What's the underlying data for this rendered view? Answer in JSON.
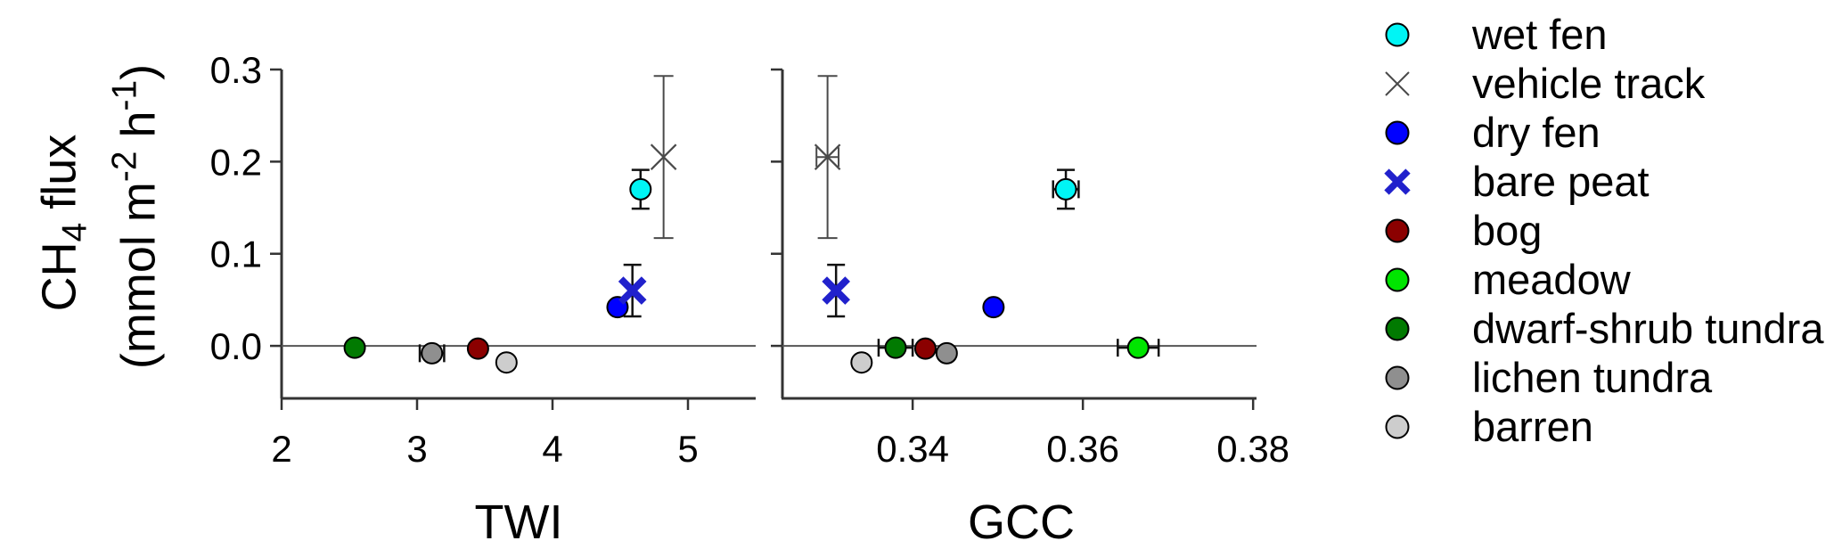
{
  "figure": {
    "background": "#ffffff",
    "axis_color": "#333333",
    "zero_line_color": "#555555",
    "error_bar_color": "#111111"
  },
  "ylabel": {
    "l1a": "CH",
    "l1sub": "4",
    "l1b": " flux",
    "l2a": "(mmol m",
    "l2sup1": "-2",
    "l2b": " h",
    "l2sup2": "-1",
    "l2c": ")"
  },
  "legend": {
    "items": [
      {
        "label": "wet fen",
        "marker": "circle",
        "color": "#00F5F5"
      },
      {
        "label": "vehicle track",
        "marker": "x-thin",
        "color": "#4A4A4A"
      },
      {
        "label": "dry fen",
        "marker": "circle",
        "color": "#0000FF"
      },
      {
        "label": "bare peat",
        "marker": "x-bold",
        "color": "#2121CC"
      },
      {
        "label": "bog",
        "marker": "circle",
        "color": "#8B0000"
      },
      {
        "label": "meadow",
        "marker": "circle",
        "color": "#00E500"
      },
      {
        "label": "dwarf-shrub tundra",
        "marker": "circle",
        "color": "#017A01"
      },
      {
        "label": "lichen tundra",
        "marker": "circle",
        "color": "#8F8F8F"
      },
      {
        "label": "barren",
        "marker": "circle",
        "color": "#CDCDCD"
      }
    ]
  },
  "chart_data": [
    {
      "type": "scatter",
      "title": "",
      "xlabel": "TWI",
      "ylabel": "CH4 flux (mmol m-2 h-1)",
      "xlim": [
        2,
        5.5
      ],
      "ylim": [
        -0.057,
        0.3
      ],
      "grid": false,
      "xticks": [
        {
          "value": 2,
          "label": "2"
        },
        {
          "value": 3,
          "label": "3"
        },
        {
          "value": 4,
          "label": "4"
        },
        {
          "value": 5,
          "label": "5"
        }
      ],
      "yticks": [
        {
          "value": 0.0,
          "label": "0.0"
        },
        {
          "value": 0.1,
          "label": "0.1"
        },
        {
          "value": 0.2,
          "label": "0.2"
        },
        {
          "value": 0.3,
          "label": "0.3"
        }
      ],
      "zero_line": true,
      "points": [
        {
          "name": "dwarf-shrub tundra",
          "marker": "circle",
          "color": "#017A01",
          "x": 2.54,
          "y": -0.002
        },
        {
          "name": "lichen tundra",
          "marker": "circle",
          "color": "#8F8F8F",
          "x": 3.11,
          "y": -0.008,
          "xerr": 0.09
        },
        {
          "name": "bog",
          "marker": "circle",
          "color": "#8B0000",
          "x": 3.45,
          "y": -0.003
        },
        {
          "name": "barren",
          "marker": "circle",
          "color": "#CDCDCD",
          "x": 3.66,
          "y": -0.018
        },
        {
          "name": "dry fen",
          "marker": "circle",
          "color": "#0000FF",
          "x": 4.48,
          "y": 0.042
        },
        {
          "name": "bare peat",
          "marker": "x-bold",
          "color": "#2121CC",
          "x": 4.59,
          "y": 0.06,
          "yerr": 0.028
        },
        {
          "name": "wet fen",
          "marker": "circle",
          "color": "#00F5F5",
          "x": 4.65,
          "y": 0.17,
          "yerr": 0.021
        },
        {
          "name": "vehicle track",
          "marker": "x-thin",
          "color": "#4A4A4A",
          "x": 4.82,
          "y": 0.205,
          "yerr": 0.088
        }
      ]
    },
    {
      "type": "scatter",
      "title": "",
      "xlabel": "GCC",
      "ylabel": "CH4 flux (mmol m-2 h-1)",
      "xlim": [
        0.3247,
        0.3804
      ],
      "ylim": [
        -0.057,
        0.3
      ],
      "grid": false,
      "xticks": [
        {
          "value": 0.34,
          "label": "0.34"
        },
        {
          "value": 0.36,
          "label": "0.36"
        },
        {
          "value": 0.38,
          "label": "0.38"
        }
      ],
      "yticks": [
        {
          "value": 0.0,
          "label": ""
        },
        {
          "value": 0.1,
          "label": ""
        },
        {
          "value": 0.2,
          "label": ""
        },
        {
          "value": 0.3,
          "label": ""
        }
      ],
      "zero_line": true,
      "points": [
        {
          "name": "barren",
          "marker": "circle",
          "color": "#CDCDCD",
          "x": 0.334,
          "y": -0.018
        },
        {
          "name": "lichen tundra",
          "marker": "circle",
          "color": "#8F8F8F",
          "x": 0.344,
          "y": -0.008
        },
        {
          "name": "bog",
          "marker": "circle",
          "color": "#8B0000",
          "x": 0.3415,
          "y": -0.003
        },
        {
          "name": "dwarf-shrub tundra",
          "marker": "circle",
          "color": "#017A01",
          "x": 0.338,
          "y": -0.002,
          "xerr": 0.002
        },
        {
          "name": "dry fen",
          "marker": "circle",
          "color": "#0000FF",
          "x": 0.3495,
          "y": 0.042
        },
        {
          "name": "bare peat",
          "marker": "x-bold",
          "color": "#2121CC",
          "x": 0.331,
          "y": 0.06,
          "yerr": 0.028
        },
        {
          "name": "vehicle track",
          "marker": "x-thin",
          "color": "#4A4A4A",
          "x": 0.33,
          "y": 0.205,
          "yerr": 0.088,
          "xerr": 0.0013
        },
        {
          "name": "wet fen",
          "marker": "circle",
          "color": "#00F5F5",
          "x": 0.358,
          "y": 0.17,
          "yerr": 0.021,
          "xerr": 0.0015
        },
        {
          "name": "meadow",
          "marker": "circle",
          "color": "#00E500",
          "x": 0.3665,
          "y": -0.002,
          "xerr": 0.0024
        }
      ]
    }
  ]
}
